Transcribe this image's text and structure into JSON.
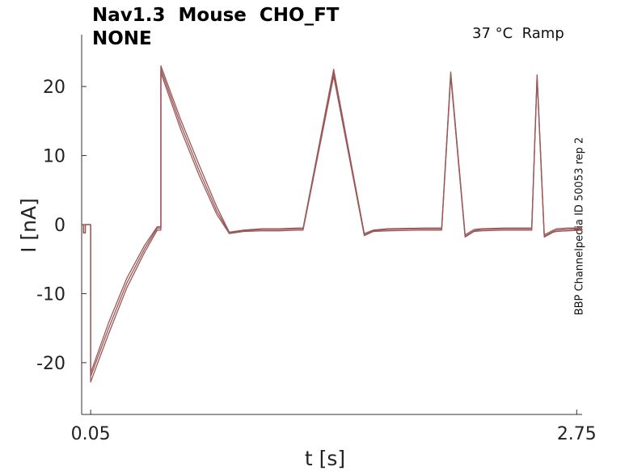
{
  "title_line1": "Nav1.3  Mouse  CHO_FT",
  "title_line2": "NONE",
  "condition_label": "37 °C  Ramp",
  "side_label": "BBP Channelpedia ID 50053 rep 2",
  "chart_data": {
    "type": "line",
    "xlabel": "t [s]",
    "ylabel": "I [nA]",
    "xticks": [
      "0.05",
      "2.75"
    ],
    "yticks": [
      20,
      10,
      0,
      -10,
      -20
    ],
    "xlim": [
      0.0,
      2.78
    ],
    "ylim": [
      -27.5,
      27.5
    ],
    "line_color": "#9a5858",
    "grid": false,
    "legend": "none",
    "series": [
      {
        "x": [
          0.0,
          0.01,
          0.01,
          0.02,
          0.02,
          0.05,
          0.05,
          0.15,
          0.25,
          0.35,
          0.42,
          0.44,
          0.44,
          0.55,
          0.65,
          0.75,
          0.82,
          0.9,
          1.0,
          1.1,
          1.2,
          1.23,
          1.4,
          1.57,
          1.62,
          1.7,
          1.9,
          2.0,
          2.05,
          2.13,
          2.18,
          2.22,
          2.35,
          2.5,
          2.53,
          2.57,
          2.62,
          2.64,
          2.7,
          2.78
        ],
        "y": [
          0.0,
          0.0,
          -1.2,
          -1.2,
          0.0,
          0.0,
          -22.0,
          -15.0,
          -8.5,
          -3.5,
          -0.5,
          -0.5,
          22.5,
          14.5,
          8.0,
          2.0,
          -1.2,
          -0.9,
          -0.7,
          -0.7,
          -0.6,
          -0.6,
          22.0,
          -1.5,
          -0.9,
          -0.7,
          -0.6,
          -0.6,
          21.8,
          -1.7,
          -0.9,
          -0.7,
          -0.6,
          -0.6,
          21.5,
          -1.7,
          -1.0,
          -0.8,
          -0.7,
          -0.6
        ]
      },
      {
        "x": [
          0.0,
          0.01,
          0.01,
          0.02,
          0.02,
          0.05,
          0.05,
          0.15,
          0.25,
          0.35,
          0.42,
          0.44,
          0.44,
          0.55,
          0.65,
          0.75,
          0.82,
          0.9,
          1.0,
          1.1,
          1.2,
          1.23,
          1.4,
          1.57,
          1.62,
          1.7,
          1.9,
          2.0,
          2.05,
          2.13,
          2.18,
          2.22,
          2.35,
          2.5,
          2.53,
          2.57,
          2.62,
          2.64,
          2.7,
          2.78
        ],
        "y": [
          0.0,
          0.0,
          -1.2,
          -1.2,
          0.0,
          0.0,
          -21.5,
          -14.2,
          -7.8,
          -3.0,
          -0.3,
          -0.3,
          23.0,
          15.2,
          8.8,
          2.6,
          -1.1,
          -0.8,
          -0.6,
          -0.6,
          -0.5,
          -0.5,
          22.5,
          -1.3,
          -0.8,
          -0.6,
          -0.5,
          -0.5,
          22.1,
          -1.5,
          -0.7,
          -0.6,
          -0.5,
          -0.5,
          21.7,
          -1.5,
          -0.8,
          -0.6,
          -0.5,
          -0.5
        ]
      },
      {
        "x": [
          0.0,
          0.01,
          0.01,
          0.02,
          0.02,
          0.05,
          0.05,
          0.15,
          0.25,
          0.35,
          0.42,
          0.44,
          0.44,
          0.55,
          0.65,
          0.75,
          0.82,
          0.9,
          1.0,
          1.1,
          1.2,
          1.23,
          1.4,
          1.57,
          1.62,
          1.7,
          1.9,
          2.0,
          2.05,
          2.13,
          2.18,
          2.22,
          2.35,
          2.5,
          2.53,
          2.57,
          2.62,
          2.64,
          2.7,
          2.78
        ],
        "y": [
          0.0,
          0.0,
          -1.2,
          -1.2,
          0.0,
          0.0,
          -22.8,
          -15.8,
          -9.2,
          -4.0,
          -0.8,
          -0.8,
          22.0,
          13.8,
          7.3,
          1.5,
          -1.3,
          -1.0,
          -0.9,
          -0.9,
          -0.8,
          -0.8,
          21.5,
          -1.6,
          -1.0,
          -0.9,
          -0.8,
          -0.8,
          21.5,
          -1.8,
          -1.0,
          -0.9,
          -0.8,
          -0.8,
          21.3,
          -1.8,
          -1.1,
          -1.0,
          -0.9,
          -0.8
        ]
      }
    ]
  }
}
